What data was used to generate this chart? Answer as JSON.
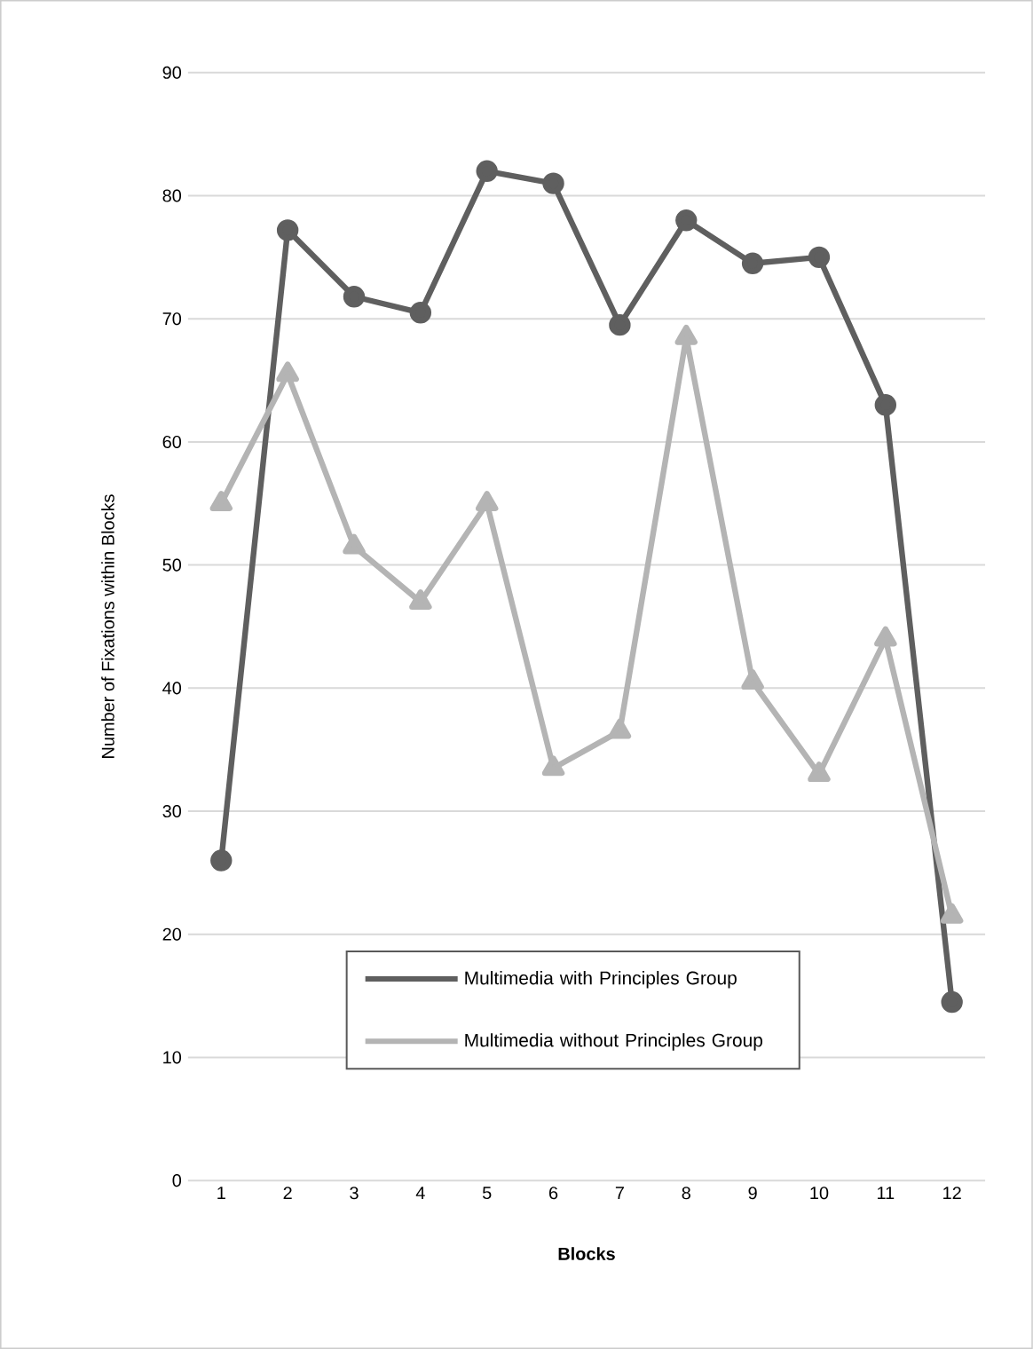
{
  "chart_data": {
    "type": "line",
    "xlabel": "Blocks",
    "ylabel": "Number of Fixations within Blocks",
    "categories": [
      "1",
      "2",
      "3",
      "4",
      "5",
      "6",
      "7",
      "8",
      "9",
      "10",
      "11",
      "12"
    ],
    "series": [
      {
        "name": "Multimedia with Principles Group",
        "color": "#5f5f5f",
        "marker": "circle",
        "values": [
          26,
          77.2,
          71.8,
          70.5,
          82,
          81,
          69.5,
          78,
          74.5,
          75,
          63,
          14.5
        ]
      },
      {
        "name": "Multimedia without Principles Group",
        "color": "#b4b4b4",
        "marker": "triangle",
        "values": [
          55,
          65.5,
          51.5,
          47,
          55,
          33.5,
          36.5,
          68.5,
          40.5,
          33,
          44,
          21.5
        ]
      }
    ],
    "ylim": [
      0,
      90
    ],
    "yticks": [
      0,
      10,
      20,
      30,
      40,
      50,
      60,
      70,
      80,
      90
    ],
    "grid": "y",
    "legend": "bottom",
    "line_style": "solid"
  }
}
